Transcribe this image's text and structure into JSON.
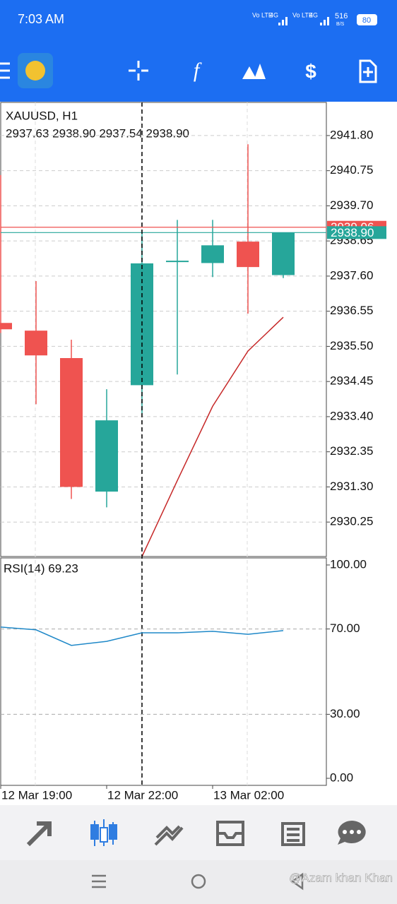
{
  "status_bar": {
    "time": "7:03 AM",
    "network": [
      "Vo LTE",
      "4G",
      "Vo LTE",
      "4G"
    ],
    "speed": "516",
    "speed_unit": "B/S",
    "battery": "80"
  },
  "chart_data": [
    {
      "type": "candlestick",
      "title": "XAUUSD, H1",
      "subtitle": "2937.63 2938.90 2937.54 2938.90",
      "open": [
        2936.2,
        2935.97,
        2935.15,
        2931.16,
        2934.34,
        2938.02,
        2937.99,
        2938.63,
        2937.63
      ],
      "high": [
        2940.62,
        2937.45,
        2935.7,
        2934.22,
        2938.88,
        2939.28,
        2939.28,
        2941.54,
        2938.9
      ],
      "low": [
        2935.9,
        2933.77,
        2930.94,
        2930.69,
        2933.5,
        2934.66,
        2937.57,
        2936.48,
        2937.54
      ],
      "close": [
        2936.01,
        2935.23,
        2931.3,
        2933.29,
        2937.98,
        2938.06,
        2938.52,
        2937.87,
        2938.9
      ],
      "up_color": "#26a69a",
      "down_color": "#ef5350",
      "overlay": {
        "color": "#c62828",
        "values": [
          null,
          null,
          null,
          null,
          2929.22,
          2931.49,
          2933.71,
          2935.36,
          2936.37
        ]
      },
      "price_lines": [
        {
          "value": 2939.06,
          "label": "2939.06",
          "color": "#ef5350"
        },
        {
          "value": 2938.9,
          "label": "2938.90",
          "color": "#26a69a"
        }
      ],
      "crosshair_index": 4,
      "ylim": [
        2929.22,
        2942.79
      ],
      "yticks": [
        {
          "value": 2941.8,
          "label": "2941.80"
        },
        {
          "value": 2940.75,
          "label": "2940.75"
        },
        {
          "value": 2939.7,
          "label": "2939.70"
        },
        {
          "value": 2938.65,
          "label": "2938.65"
        },
        {
          "value": 2937.6,
          "label": "2937.60"
        },
        {
          "value": 2936.55,
          "label": "2936.55"
        },
        {
          "value": 2935.5,
          "label": "2935.50"
        },
        {
          "value": 2934.45,
          "label": "2934.45"
        },
        {
          "value": 2933.4,
          "label": "2933.40"
        },
        {
          "value": 2932.35,
          "label": "2932.35"
        },
        {
          "value": 2931.3,
          "label": "2931.30"
        },
        {
          "value": 2930.25,
          "label": "2930.25"
        }
      ],
      "grid": true
    },
    {
      "type": "line",
      "title": "RSI(14) 69.23",
      "categories": [
        "12 Mar 19:00",
        null,
        null,
        "12 Mar 22:00",
        null,
        null,
        "13 Mar 02:00",
        null,
        null
      ],
      "series": [
        {
          "color": "#1e88c8",
          "values": [
            70.9,
            69.6,
            62.3,
            64.2,
            68.2,
            68.2,
            68.9,
            67.5,
            69.23
          ]
        }
      ],
      "levels": [
        30,
        70
      ],
      "ylim": [
        -3.3,
        103.3
      ],
      "yticks": [
        {
          "value": 0,
          "label": "0.00"
        },
        {
          "value": 30,
          "label": "30.00"
        },
        {
          "value": 70,
          "label": "70.00"
        },
        {
          "value": 100,
          "label": "100.00"
        }
      ]
    }
  ],
  "watermark": "@Azam khan Khan"
}
